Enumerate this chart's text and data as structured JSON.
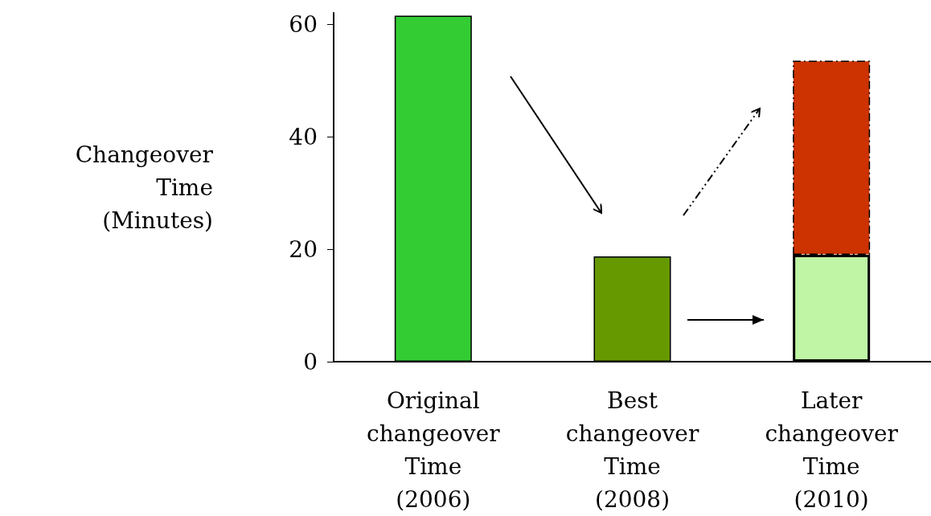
{
  "chart_data": {
    "type": "bar",
    "ylabel": "Changeover\nTime\n(Minutes)",
    "categories": [
      "Original\nchangeover\nTime\n(2006)",
      "Best\nchangeover\nTime\n(2008)",
      "Later\nchangeover\nTime\n(2010)"
    ],
    "stacked": true,
    "series": [
      {
        "colors": [
          "#33cc33",
          "#669900",
          "#bff5a5"
        ],
        "values": [
          61.5,
          18.7,
          19
        ]
      },
      {
        "colors": [
          "#cc3300",
          "#cc3300",
          "#cc3300"
        ],
        "values": [
          null,
          null,
          34.5
        ]
      }
    ],
    "ylim": [
      0,
      62
    ],
    "yticks": [
      0,
      20,
      40,
      60
    ],
    "grid": false
  }
}
